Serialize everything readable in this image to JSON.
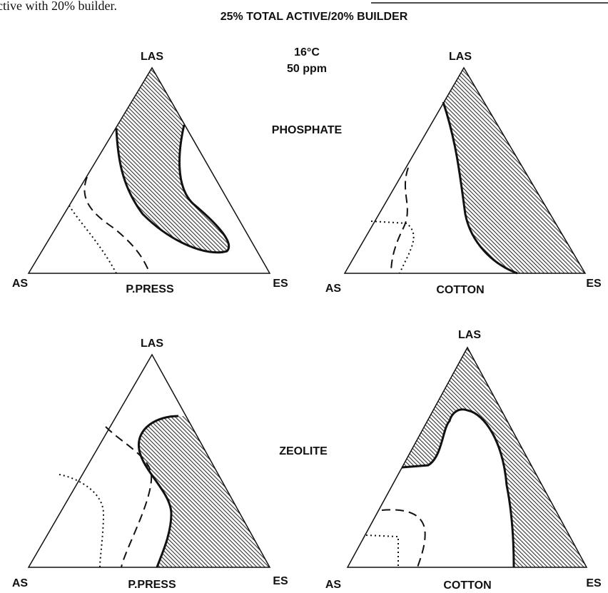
{
  "caption_fragment": "ctive with 20% builder.",
  "title": "25% TOTAL ACTIVE/20% BUILDER",
  "conditions": [
    "16°C",
    "50 ppm"
  ],
  "rows": [
    {
      "builder": "PHOSPHATE",
      "panels": [
        {
          "top": "LAS",
          "left": "AS",
          "right": "ES",
          "fabric": "P.PRESS"
        },
        {
          "top": "LAS",
          "left": "AS",
          "right": "ES",
          "fabric": "COTTON"
        }
      ]
    },
    {
      "builder": "ZEOLITE",
      "panels": [
        {
          "top": "LAS",
          "left": "AS",
          "right": "ES",
          "fabric": "P.PRESS"
        },
        {
          "top": "LAS",
          "left": "AS",
          "right": "ES",
          "fabric": "COTTON"
        }
      ]
    }
  ]
}
